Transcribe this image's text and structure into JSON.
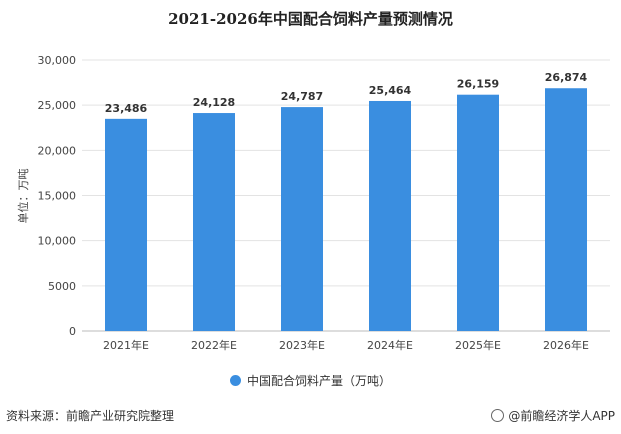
{
  "chart_data": {
    "type": "bar",
    "title": "2021-2026年中国配合饲料产量预测情况",
    "ylabel": "单位：万吨",
    "categories": [
      "2021年E",
      "2022年E",
      "2023年E",
      "2024年E",
      "2025年E",
      "2026年E"
    ],
    "series": [
      {
        "name": "中国配合饲料产量（万吨）",
        "values": [
          23486,
          24128,
          24787,
          25464,
          26159,
          26874
        ]
      }
    ],
    "data_labels": [
      "23,486",
      "24,128",
      "24,787",
      "25,464",
      "26,159",
      "26,874"
    ],
    "ylim": [
      0,
      30000
    ],
    "yticks": [
      0,
      5000,
      10000,
      15000,
      20000,
      25000,
      30000
    ],
    "ytick_labels": [
      "0",
      "5000",
      "10,000",
      "15,000",
      "20,000",
      "25,000",
      "30,000"
    ],
    "grid": true,
    "legend": "bottom",
    "bar_color": "#3a8ee0"
  },
  "source": "资料来源：前瞻产业研究院整理",
  "credit": "@前瞻经济学人APP"
}
